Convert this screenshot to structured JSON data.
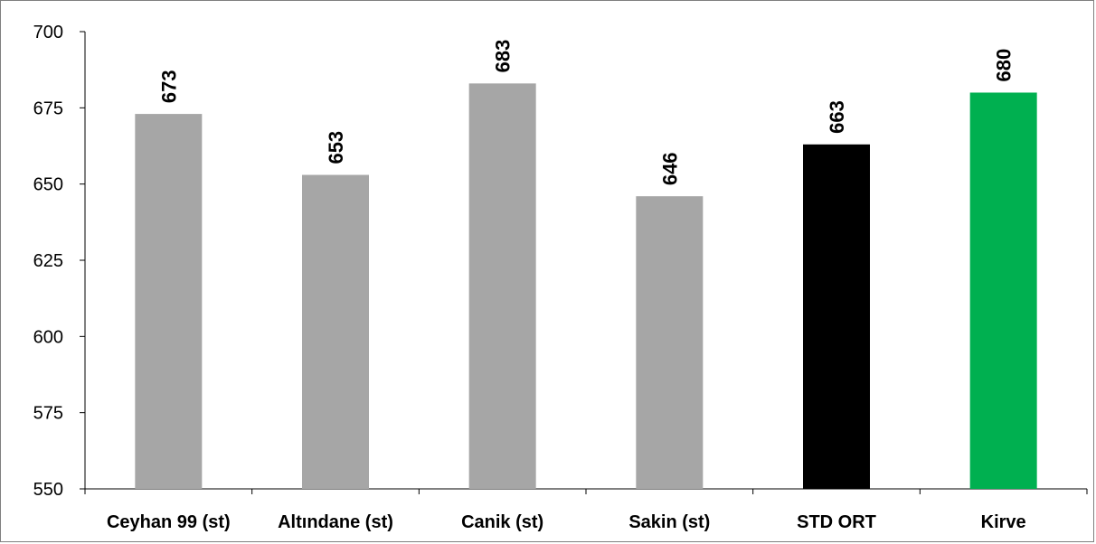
{
  "chart_data": {
    "type": "bar",
    "categories": [
      "Ceyhan 99 (st)",
      "Altındane (st)",
      "Canik (st)",
      "Sakin (st)",
      "STD ORT",
      "Kirve"
    ],
    "values": [
      673,
      653,
      683,
      646,
      663,
      680
    ],
    "data_labels": [
      "673",
      "653",
      "683",
      "646",
      "663",
      "680"
    ],
    "bar_colors": [
      "#a6a6a6",
      "#a6a6a6",
      "#a6a6a6",
      "#a6a6a6",
      "#000000",
      "#00b050"
    ],
    "ylim": [
      550,
      700
    ],
    "yticks": [
      550,
      575,
      600,
      625,
      650,
      675,
      700
    ],
    "title": "",
    "xlabel": "",
    "ylabel": "",
    "grid": false,
    "legend": "none"
  }
}
